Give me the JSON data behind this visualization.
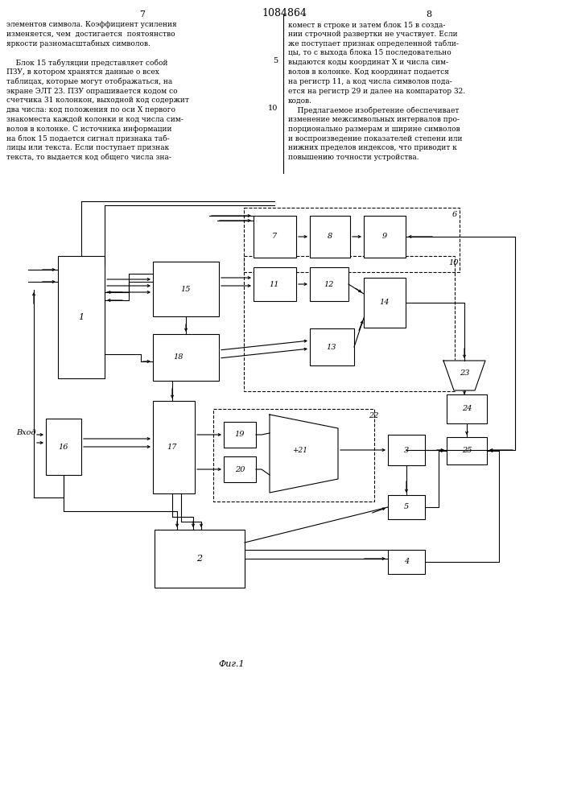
{
  "title": "1084864",
  "page_left": "7",
  "page_right": "8",
  "fig_label": "Фиг.1",
  "input_label": "Вход",
  "text_left": [
    "элементов символа. Коэффициент усиления",
    "изменяется, чем  достигается  поятоянство",
    "яркости разномасштабных символов.",
    "",
    "    Блок 15 табуляции представляет собой",
    "ПЗУ, в котором хранятся данные о всех",
    "таблицах, которые могут отображаться, на",
    "экране ЭЛТ 23. ПЗУ опрашивается кодом со",
    "счетчика 31 колонкон, выходной код содержит",
    "два числа: код положения по оси X первого",
    "знакоместа каждой колонки и код числа сим-",
    "волов в колонке. С источника информации",
    "на блок 15 подается сигнал признака таб-",
    "лицы или текста. Если поступает признак",
    "текста, то выдается код общего числа зна-"
  ],
  "text_right": [
    "комест в строке и затем блок 15 в созда-",
    "нии строчной развертки не участвует. Если",
    "же поступает признак определенной табли-",
    "цы, то с выхода блока 15 последовательно",
    "выдаются коды координат X и числа сим-",
    "волов в колонке. Код координат подается",
    "на регистр 11, а код числа символов пода-",
    "ется на регистр 29 и далее на компаратор 32.",
    "кодов.",
    "    Предлагаемое изобретение обеспечивает",
    "изменение межсимвольных интервалов про-",
    "порционально размерам и ширине символов",
    "и воспроизведение показателей степени или",
    "нижних пределов индексов, что приводит к",
    "повышению точности устройства."
  ]
}
